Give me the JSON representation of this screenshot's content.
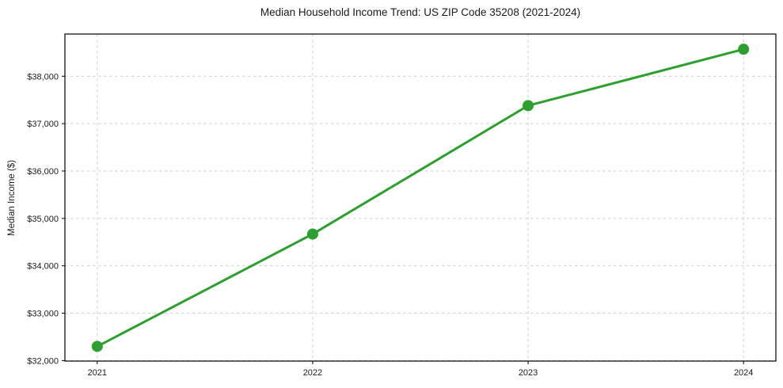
{
  "chart_data": {
    "type": "line",
    "title": "Median Household Income Trend: US ZIP Code 35208 (2021-2024)",
    "xlabel": "",
    "ylabel": "Median Income ($)",
    "x": [
      2021,
      2022,
      2023,
      2024
    ],
    "series": [
      {
        "name": "Median Household Income",
        "values": [
          32300,
          34670,
          37380,
          38570
        ],
        "color": "#2ca02c",
        "marker": "circle"
      }
    ],
    "xlim": [
      2020.85,
      2024.15
    ],
    "ylim": [
      31990,
      38890
    ],
    "xticks": [
      2021,
      2022,
      2023,
      2024
    ],
    "xtick_labels": [
      "2021",
      "2022",
      "2023",
      "2024"
    ],
    "yticks": [
      32000,
      33000,
      34000,
      35000,
      36000,
      37000,
      38000
    ],
    "ytick_labels": [
      "$32,000",
      "$33,000",
      "$34,000",
      "$35,000",
      "$36,000",
      "$37,000",
      "$38,000"
    ],
    "grid": true,
    "grid_style": "dashed",
    "legend": false,
    "background_color": "#ffffff"
  }
}
